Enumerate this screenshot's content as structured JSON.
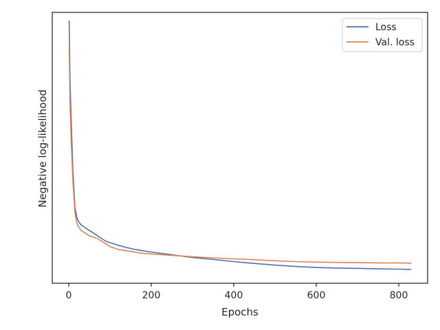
{
  "chart_data": {
    "type": "line",
    "title": "",
    "xlabel": "Epochs",
    "ylabel": "Negative log-likelihood",
    "xlim": [
      -40,
      870
    ],
    "ylim": [
      0,
      1
    ],
    "y_tick_labels_shown": false,
    "x_ticks": [
      0,
      200,
      400,
      600,
      800
    ],
    "x_tick_labels": [
      "0",
      "200",
      "400",
      "600",
      "800"
    ],
    "grid": false,
    "legend": {
      "placement": "top-right"
    },
    "series": [
      {
        "name": "Loss",
        "color": "#4c72b0",
        "x": [
          1,
          3,
          6,
          10,
          15,
          20,
          25,
          30,
          40,
          50,
          60,
          70,
          80,
          90,
          100,
          120,
          140,
          160,
          180,
          200,
          250,
          300,
          350,
          400,
          450,
          500,
          550,
          600,
          650,
          700,
          750,
          800,
          830
        ],
        "y": [
          0.97,
          0.76,
          0.6,
          0.42,
          0.28,
          0.24,
          0.225,
          0.215,
          0.205,
          0.195,
          0.185,
          0.175,
          0.165,
          0.155,
          0.15,
          0.14,
          0.132,
          0.125,
          0.12,
          0.115,
          0.105,
          0.095,
          0.088,
          0.08,
          0.073,
          0.067,
          0.062,
          0.058,
          0.056,
          0.055,
          0.053,
          0.052,
          0.051
        ]
      },
      {
        "name": "Val. loss",
        "color": "#dd8452",
        "x": [
          1,
          3,
          6,
          10,
          15,
          20,
          25,
          30,
          40,
          50,
          60,
          70,
          80,
          90,
          100,
          120,
          140,
          160,
          180,
          200,
          250,
          300,
          350,
          400,
          450,
          500,
          550,
          600,
          650,
          700,
          750,
          800,
          830
        ],
        "y": [
          0.87,
          0.67,
          0.52,
          0.38,
          0.26,
          0.22,
          0.205,
          0.195,
          0.185,
          0.175,
          0.17,
          0.165,
          0.155,
          0.145,
          0.135,
          0.125,
          0.12,
          0.115,
          0.11,
          0.108,
          0.103,
          0.098,
          0.094,
          0.09,
          0.087,
          0.083,
          0.08,
          0.078,
          0.077,
          0.076,
          0.075,
          0.075,
          0.074
        ]
      }
    ]
  }
}
